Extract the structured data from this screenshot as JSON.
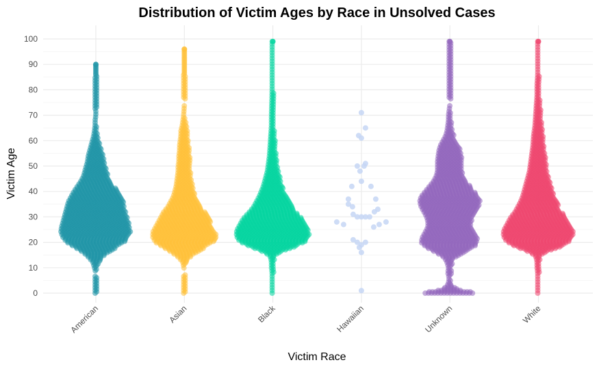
{
  "chart_data": {
    "type": "beeswarm",
    "title": "Distribution of Victim Ages by Race in Unsolved Cases",
    "xlabel": "Victim Race",
    "ylabel": "Victim Age",
    "ylim": [
      0,
      100
    ],
    "y_ticks": [
      0,
      10,
      20,
      30,
      40,
      50,
      60,
      70,
      80,
      90,
      100
    ],
    "grid": true,
    "categories": [
      "American",
      "Asian",
      "Black",
      "Hawaiian",
      "Unknown",
      "White"
    ],
    "series": [
      {
        "category": "American",
        "color": "#2196A8",
        "range": [
          0,
          90
        ],
        "density_profile": [
          [
            0,
            2
          ],
          [
            1,
            3
          ],
          [
            3,
            2
          ],
          [
            8,
            4
          ],
          [
            12,
            8
          ],
          [
            14,
            14
          ],
          [
            16,
            22
          ],
          [
            18,
            34
          ],
          [
            20,
            46
          ],
          [
            22,
            52
          ],
          [
            24,
            55
          ],
          [
            26,
            54
          ],
          [
            28,
            52
          ],
          [
            30,
            50
          ],
          [
            32,
            48
          ],
          [
            34,
            46
          ],
          [
            36,
            44
          ],
          [
            38,
            40
          ],
          [
            40,
            36
          ],
          [
            42,
            31
          ],
          [
            44,
            26
          ],
          [
            46,
            22
          ],
          [
            48,
            20
          ],
          [
            50,
            18
          ],
          [
            52,
            16
          ],
          [
            54,
            15
          ],
          [
            56,
            13
          ],
          [
            58,
            11
          ],
          [
            60,
            9
          ],
          [
            62,
            7
          ],
          [
            64,
            6
          ],
          [
            66,
            5
          ],
          [
            68,
            5
          ],
          [
            70,
            4
          ],
          [
            72,
            4
          ],
          [
            73,
            3
          ],
          [
            76,
            2
          ],
          [
            80,
            2
          ],
          [
            84,
            2
          ],
          [
            87,
            1
          ],
          [
            88,
            1
          ],
          [
            90,
            1
          ]
        ]
      },
      {
        "category": "Asian",
        "color": "#FFC13B",
        "range": [
          0,
          96
        ],
        "density_profile": [
          [
            0,
            3
          ],
          [
            1,
            3
          ],
          [
            3,
            2
          ],
          [
            6,
            3
          ],
          [
            9,
            4
          ],
          [
            12,
            6
          ],
          [
            14,
            12
          ],
          [
            16,
            22
          ],
          [
            18,
            34
          ],
          [
            20,
            46
          ],
          [
            22,
            50
          ],
          [
            24,
            50
          ],
          [
            26,
            46
          ],
          [
            28,
            42
          ],
          [
            30,
            38
          ],
          [
            32,
            34
          ],
          [
            34,
            28
          ],
          [
            36,
            24
          ],
          [
            38,
            20
          ],
          [
            40,
            18
          ],
          [
            42,
            16
          ],
          [
            44,
            15
          ],
          [
            46,
            14
          ],
          [
            48,
            13
          ],
          [
            50,
            13
          ],
          [
            52,
            12
          ],
          [
            54,
            12
          ],
          [
            56,
            11
          ],
          [
            58,
            11
          ],
          [
            60,
            10
          ],
          [
            62,
            9
          ],
          [
            64,
            9
          ],
          [
            66,
            7
          ],
          [
            68,
            6
          ],
          [
            70,
            5
          ],
          [
            74,
            4
          ],
          [
            78,
            3
          ],
          [
            82,
            3
          ],
          [
            84,
            2
          ],
          [
            88,
            1
          ],
          [
            92,
            1
          ],
          [
            96,
            1
          ]
        ]
      },
      {
        "category": "Black",
        "color": "#06D6A0",
        "range": [
          0,
          99
        ],
        "density_profile": [
          [
            0,
            5
          ],
          [
            2,
            5
          ],
          [
            4,
            5
          ],
          [
            6,
            5
          ],
          [
            8,
            5
          ],
          [
            10,
            6
          ],
          [
            12,
            6
          ],
          [
            14,
            7
          ],
          [
            15,
            10
          ],
          [
            16,
            16
          ],
          [
            17,
            24
          ],
          [
            18,
            34
          ],
          [
            19,
            42
          ],
          [
            20,
            50
          ],
          [
            21,
            54
          ],
          [
            22,
            56
          ],
          [
            23,
            57
          ],
          [
            24,
            57
          ],
          [
            25,
            56
          ],
          [
            26,
            54
          ],
          [
            27,
            52
          ],
          [
            28,
            50
          ],
          [
            29,
            48
          ],
          [
            30,
            45
          ],
          [
            32,
            38
          ],
          [
            34,
            32
          ],
          [
            36,
            28
          ],
          [
            38,
            24
          ],
          [
            40,
            21
          ],
          [
            42,
            18
          ],
          [
            44,
            16
          ],
          [
            46,
            14
          ],
          [
            48,
            12
          ],
          [
            50,
            11
          ],
          [
            54,
            9
          ],
          [
            58,
            8
          ],
          [
            62,
            7
          ],
          [
            66,
            6
          ],
          [
            70,
            6
          ],
          [
            80,
            5
          ],
          [
            90,
            5
          ],
          [
            99,
            5
          ]
        ]
      },
      {
        "category": "Hawaiian",
        "color": "#C6D6F5",
        "range": [
          1,
          71
        ],
        "points": [
          {
            "age": 71,
            "dx": 0
          },
          {
            "age": 65,
            "dx": 6
          },
          {
            "age": 62,
            "dx": -4
          },
          {
            "age": 61,
            "dx": 0
          },
          {
            "age": 51,
            "dx": 6
          },
          {
            "age": 50,
            "dx": -6
          },
          {
            "age": 50,
            "dx": 4
          },
          {
            "age": 48,
            "dx": -2
          },
          {
            "age": 44,
            "dx": 0
          },
          {
            "age": 42,
            "dx": -14
          },
          {
            "age": 42,
            "dx": 14
          },
          {
            "age": 37,
            "dx": -19
          },
          {
            "age": 37,
            "dx": 21
          },
          {
            "age": 35,
            "dx": -19
          },
          {
            "age": 34,
            "dx": -13
          },
          {
            "age": 33,
            "dx": 24
          },
          {
            "age": 32,
            "dx": 19
          },
          {
            "age": 31,
            "dx": -12
          },
          {
            "age": 30,
            "dx": -6
          },
          {
            "age": 30,
            "dx": 0
          },
          {
            "age": 30,
            "dx": 6
          },
          {
            "age": 30,
            "dx": 12
          },
          {
            "age": 28,
            "dx": -36
          },
          {
            "age": 28,
            "dx": 36
          },
          {
            "age": 27,
            "dx": -26
          },
          {
            "age": 27,
            "dx": 26
          },
          {
            "age": 26,
            "dx": 18
          },
          {
            "age": 21,
            "dx": -12
          },
          {
            "age": 20,
            "dx": -6
          },
          {
            "age": 20,
            "dx": 6
          },
          {
            "age": 19,
            "dx": 0
          },
          {
            "age": 18,
            "dx": -3
          },
          {
            "age": 16,
            "dx": 0
          },
          {
            "age": 1,
            "dx": 0
          }
        ]
      },
      {
        "category": "Unknown",
        "color": "#9467BD",
        "range": [
          0,
          99
        ],
        "density_profile": [
          [
            0,
            40
          ],
          [
            0.6,
            36
          ],
          [
            1.2,
            18
          ],
          [
            2,
            12
          ],
          [
            3,
            8
          ],
          [
            4,
            6
          ],
          [
            6,
            5
          ],
          [
            8,
            7
          ],
          [
            10,
            6
          ],
          [
            12,
            8
          ],
          [
            14,
            12
          ],
          [
            16,
            24
          ],
          [
            18,
            38
          ],
          [
            20,
            46
          ],
          [
            22,
            44
          ],
          [
            24,
            40
          ],
          [
            26,
            36
          ],
          [
            28,
            36
          ],
          [
            30,
            38
          ],
          [
            32,
            42
          ],
          [
            34,
            46
          ],
          [
            36,
            48
          ],
          [
            38,
            46
          ],
          [
            40,
            40
          ],
          [
            42,
            34
          ],
          [
            44,
            28
          ],
          [
            46,
            24
          ],
          [
            48,
            22
          ],
          [
            50,
            22
          ],
          [
            52,
            22
          ],
          [
            54,
            21
          ],
          [
            56,
            20
          ],
          [
            58,
            18
          ],
          [
            60,
            14
          ],
          [
            62,
            10
          ],
          [
            64,
            8
          ],
          [
            66,
            7
          ],
          [
            68,
            6
          ],
          [
            70,
            6
          ],
          [
            74,
            4
          ],
          [
            78,
            3
          ],
          [
            82,
            3
          ],
          [
            86,
            2
          ],
          [
            90,
            2
          ],
          [
            95,
            2
          ],
          [
            99,
            2
          ]
        ]
      },
      {
        "category": "White",
        "color": "#EF476F",
        "range": [
          0,
          99
        ],
        "density_profile": [
          [
            0,
            5
          ],
          [
            2,
            5
          ],
          [
            4,
            5
          ],
          [
            6,
            5
          ],
          [
            8,
            5
          ],
          [
            10,
            6
          ],
          [
            12,
            6
          ],
          [
            14,
            7
          ],
          [
            15,
            10
          ],
          [
            16,
            16
          ],
          [
            17,
            24
          ],
          [
            18,
            34
          ],
          [
            19,
            42
          ],
          [
            20,
            48
          ],
          [
            21,
            52
          ],
          [
            22,
            54
          ],
          [
            23,
            55
          ],
          [
            24,
            55
          ],
          [
            25,
            54
          ],
          [
            26,
            52
          ],
          [
            27,
            50
          ],
          [
            28,
            48
          ],
          [
            29,
            46
          ],
          [
            30,
            44
          ],
          [
            32,
            38
          ],
          [
            34,
            34
          ],
          [
            36,
            30
          ],
          [
            38,
            27
          ],
          [
            40,
            25
          ],
          [
            42,
            23
          ],
          [
            44,
            21
          ],
          [
            46,
            19
          ],
          [
            48,
            17
          ],
          [
            50,
            16
          ],
          [
            54,
            14
          ],
          [
            58,
            12
          ],
          [
            62,
            11
          ],
          [
            66,
            9
          ],
          [
            70,
            8
          ],
          [
            74,
            7
          ],
          [
            78,
            6
          ],
          [
            82,
            6
          ],
          [
            86,
            5
          ],
          [
            90,
            5
          ],
          [
            95,
            5
          ],
          [
            99,
            5
          ]
        ]
      }
    ]
  }
}
